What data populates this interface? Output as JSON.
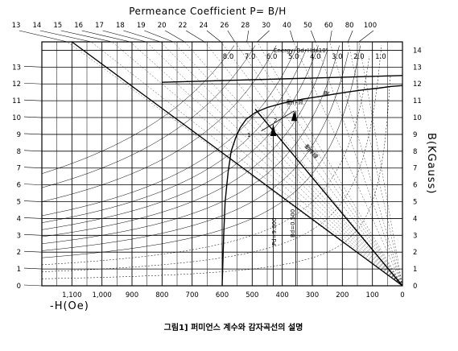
{
  "chart_data": {
    "type": "line",
    "title": "Permeance Coefficient P= B/H",
    "xlabel": "-H(Oe)",
    "ylabel": "B(KGauss)",
    "caption": "그림1] 퍼미언스 계수와 감자곡선의 설명",
    "energy_label": "Energy∶ Bd•Hdx10⁶",
    "x_reversed": true,
    "xlim": [
      0,
      1200
    ],
    "ylim": [
      0,
      14
    ],
    "x_ticks": [
      "1,100",
      "1,000",
      "900",
      "800",
      "700",
      "600",
      "500",
      "400",
      "300",
      "200",
      "100",
      "0"
    ],
    "x_tick_values": [
      1100,
      1000,
      900,
      800,
      700,
      600,
      500,
      400,
      300,
      200,
      100,
      0
    ],
    "y_ticks_left": [
      "0",
      "1",
      "2",
      "3",
      "4",
      "5",
      "6",
      "7",
      "8",
      "9",
      "10",
      "11",
      "12",
      "13"
    ],
    "y_ticks_right": [
      "0",
      "1",
      "2",
      "3",
      "4",
      "5",
      "6",
      "7",
      "8",
      "9",
      "10",
      "11",
      "12",
      "13",
      "14"
    ],
    "permeance_labels": [
      "13",
      "14",
      "15",
      "16",
      "17",
      "18",
      "19",
      "20",
      "22",
      "24",
      "26",
      "28",
      "30",
      "40",
      "50",
      "60",
      "80",
      "100"
    ],
    "permeance_values": [
      13,
      14,
      15,
      16,
      17,
      18,
      19,
      20,
      22,
      24,
      26,
      28,
      30,
      40,
      50,
      60,
      80,
      100
    ],
    "energy_labels": [
      "8.0",
      "7.0",
      "6.0",
      "5.0",
      "4.0",
      "3.0",
      "2.0",
      "1.0"
    ],
    "energy_values": [
      8.0,
      7.0,
      6.0,
      5.0,
      4.0,
      3.0,
      2.0,
      1.0
    ],
    "annotations": {
      "br_label": "Br",
      "bd_label": "Bd=0.500",
      "pd_label": "Pd=9.000",
      "work_point_label": "動作点",
      "work_line_label": "動作線",
      "point_1": "1",
      "point_2": "2"
    },
    "series": [
      {
        "x": [
          600,
          595,
          590,
          580,
          570,
          555,
          540,
          520,
          490,
          450,
          400,
          330,
          260,
          190,
          130,
          80,
          40,
          0
        ],
        "y": [
          0,
          3,
          5,
          6.8,
          8.0,
          8.8,
          9.4,
          9.9,
          10.3,
          10.6,
          10.85,
          11.1,
          11.3,
          11.5,
          11.65,
          11.75,
          11.85,
          11.9
        ]
      },
      {
        "x": [
          0,
          490
        ],
        "y": [
          0,
          10.5
        ]
      },
      {
        "x": [
          0,
          800
        ],
        "y": [
          12.5,
          12.1
        ]
      }
    ]
  }
}
